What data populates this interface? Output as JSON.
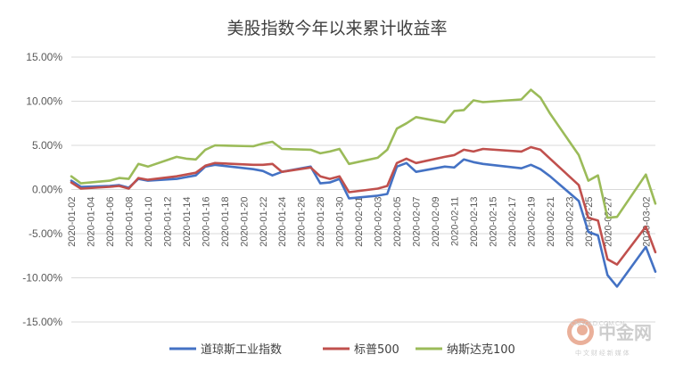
{
  "chart_data": {
    "type": "line",
    "title": "美股指数今年以来累计收益率",
    "ylim": [
      -15,
      15
    ],
    "y_ticks": [
      "15.00%",
      "10.00%",
      "5.00%",
      "0.00%",
      "-5.00%",
      "-10.00%",
      "-15.00%"
    ],
    "y_tick_values": [
      15,
      10,
      5,
      0,
      -5,
      -10,
      -15
    ],
    "x_tick_labels": [
      "2020-01-02",
      "2020-01-04",
      "2020-01-06",
      "2020-01-08",
      "2020-01-10",
      "2020-01-12",
      "2020-01-14",
      "2020-01-16",
      "2020-01-18",
      "2020-01-20",
      "2020-01-22",
      "2020-01-24",
      "2020-01-26",
      "2020-01-28",
      "2020-01-30",
      "2020-02-01",
      "2020-02-03",
      "2020-02-05",
      "2020-02-07",
      "2020-02-09",
      "2020-02-11",
      "2020-02-13",
      "2020-02-15",
      "2020-02-17",
      "2020-02-19",
      "2020-02-21",
      "2020-02-23",
      "2020-02-25",
      "2020-02-27",
      "2020-03-02"
    ],
    "x": [
      "2020-01-02",
      "2020-01-03",
      "2020-01-06",
      "2020-01-07",
      "2020-01-08",
      "2020-01-09",
      "2020-01-10",
      "2020-01-13",
      "2020-01-14",
      "2020-01-15",
      "2020-01-16",
      "2020-01-17",
      "2020-01-21",
      "2020-01-22",
      "2020-01-23",
      "2020-01-24",
      "2020-01-27",
      "2020-01-28",
      "2020-01-29",
      "2020-01-30",
      "2020-01-31",
      "2020-02-03",
      "2020-02-04",
      "2020-02-05",
      "2020-02-06",
      "2020-02-07",
      "2020-02-10",
      "2020-02-11",
      "2020-02-12",
      "2020-02-13",
      "2020-02-14",
      "2020-02-18",
      "2020-02-19",
      "2020-02-20",
      "2020-02-21",
      "2020-02-24",
      "2020-02-25",
      "2020-02-26",
      "2020-02-27",
      "2020-02-28",
      "2020-03-02",
      "2020-03-03"
    ],
    "series": [
      {
        "name": "道琼斯工业指数",
        "color": "#4472c4",
        "values": [
          1.0,
          0.3,
          0.4,
          0.5,
          0.2,
          1.2,
          1.0,
          1.2,
          1.4,
          1.6,
          2.6,
          2.8,
          2.3,
          2.1,
          1.6,
          2.0,
          2.6,
          0.7,
          0.8,
          1.2,
          -1.0,
          -0.7,
          -0.5,
          2.6,
          3.0,
          2.0,
          2.6,
          2.5,
          3.4,
          3.1,
          2.9,
          2.4,
          2.8,
          2.3,
          1.5,
          -1.3,
          -4.8,
          -5.2,
          -9.7,
          -11.0,
          -6.5,
          -9.3
        ]
      },
      {
        "name": "标普500",
        "color": "#c0504d",
        "values": [
          0.8,
          0.1,
          0.3,
          0.4,
          0.1,
          1.3,
          1.1,
          1.5,
          1.7,
          1.9,
          2.7,
          3.0,
          2.8,
          2.8,
          2.9,
          2.0,
          2.5,
          1.5,
          1.2,
          1.5,
          -0.3,
          0.1,
          0.4,
          3.0,
          3.5,
          3.0,
          3.7,
          3.9,
          4.5,
          4.3,
          4.6,
          4.3,
          4.8,
          4.5,
          3.5,
          0.5,
          -3.2,
          -3.5,
          -7.9,
          -8.5,
          -4.2,
          -7.1
        ]
      },
      {
        "name": "纳斯达克100",
        "color": "#9bbb59",
        "values": [
          1.5,
          0.7,
          1.0,
          1.3,
          1.2,
          2.9,
          2.6,
          3.7,
          3.5,
          3.4,
          4.5,
          5.0,
          4.9,
          5.2,
          5.4,
          4.6,
          4.5,
          4.1,
          4.3,
          4.6,
          2.9,
          3.6,
          4.5,
          6.9,
          7.5,
          8.2,
          7.6,
          8.9,
          9.0,
          10.1,
          9.9,
          10.2,
          11.3,
          10.4,
          8.6,
          3.9,
          1.0,
          1.6,
          -3.2,
          -3.1,
          1.7,
          -1.6
        ]
      }
    ],
    "grid": true,
    "legend_position": "bottom"
  },
  "watermark": {
    "name": "中金网",
    "url": "CNGOLD.COM.CN",
    "slogan": "中 文 财 经 新 媒 体"
  }
}
